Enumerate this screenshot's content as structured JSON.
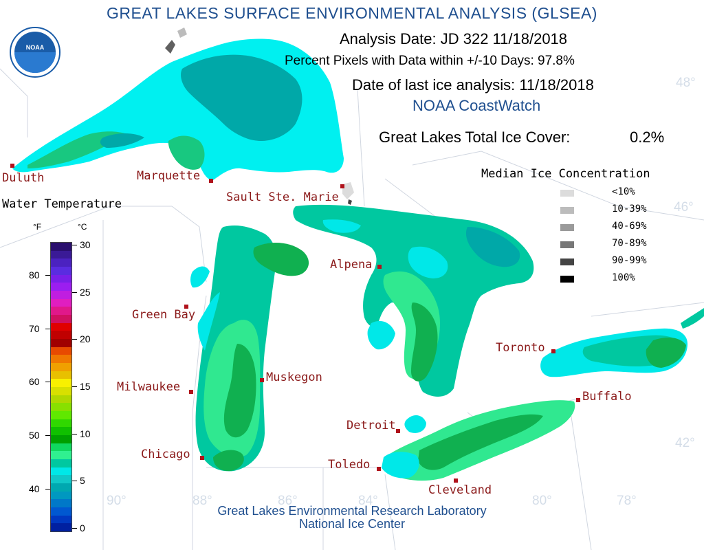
{
  "header": {
    "title": "GREAT LAKES SURFACE ENVIRONMENTAL ANALYSIS (GLSEA)",
    "analysis_date": "Analysis Date:  JD 322 11/18/2018",
    "percent_pixels": "Percent Pixels with Data within +/-10 Days:  97.8%",
    "last_ice": "Date of last ice analysis: 11/18/2018",
    "coastwatch": "NOAA CoastWatch",
    "total_ice_label": "Great Lakes Total Ice Cover:",
    "total_ice_value": "0.2%"
  },
  "logo": {
    "text": "NOAA"
  },
  "cities": {
    "duluth": "Duluth",
    "marquette": "Marquette",
    "sault": "Sault Ste. Marie",
    "green_bay": "Green Bay",
    "milwaukee": "Milwaukee",
    "muskegon": "Muskegon",
    "chicago": "Chicago",
    "alpena": "Alpena",
    "detroit": "Detroit",
    "toledo": "Toledo",
    "cleveland": "Cleveland",
    "toronto": "Toronto",
    "buffalo": "Buffalo"
  },
  "graticule": {
    "lat48": "48°",
    "lat46": "46°",
    "lat42": "42°",
    "lon90": "90°",
    "lon88": "88°",
    "lon86": "86°",
    "lon84": "84°",
    "lon80": "80°",
    "lon78": "78°"
  },
  "temperature_legend": {
    "title": "Water Temperature",
    "unit_f": "°F",
    "unit_c": "°C",
    "f_ticks": [
      "80",
      "70",
      "60",
      "50",
      "40"
    ],
    "c_ticks": [
      "30",
      "25",
      "20",
      "15",
      "10",
      "5",
      "0"
    ],
    "colors_top_to_bottom": [
      "#2a0f6e",
      "#3a1a96",
      "#4b22c0",
      "#5a2ce0",
      "#7a1fe8",
      "#9b1ef0",
      "#c01ee0",
      "#e01ec0",
      "#e0188a",
      "#d01060",
      "#e00000",
      "#c00000",
      "#a00000",
      "#e84a00",
      "#f07800",
      "#f0a000",
      "#e8c000",
      "#f8f000",
      "#d8e000",
      "#b0d800",
      "#88e000",
      "#60e800",
      "#30d800",
      "#10c000",
      "#00a000",
      "#10d860",
      "#30f090",
      "#00c8a0",
      "#00e8e8",
      "#10c8c8",
      "#00a8b0",
      "#0098c0",
      "#0078c8",
      "#0058d0",
      "#0038c0",
      "#0020a0"
    ]
  },
  "ice_legend": {
    "title": "Median Ice Concentration",
    "items": [
      {
        "label": "<10%",
        "color": "#dcdcdc"
      },
      {
        "label": "10-39%",
        "color": "#bcbcbc"
      },
      {
        "label": "40-69%",
        "color": "#9a9a9a"
      },
      {
        "label": "70-89%",
        "color": "#777777"
      },
      {
        "label": "90-99%",
        "color": "#444444"
      },
      {
        "label": "100%",
        "color": "#000000"
      }
    ]
  },
  "footer": {
    "line1": "Great Lakes Environmental Research Laboratory",
    "line2": "National Ice Center"
  }
}
